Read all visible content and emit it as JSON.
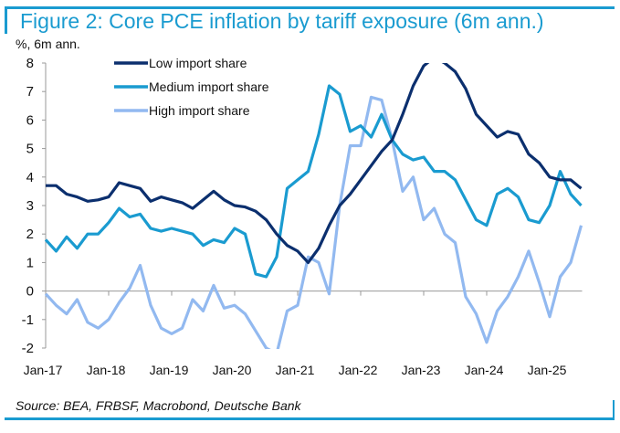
{
  "title": "Figure 2: Core PCE inflation by tariff exposure (6m ann.)",
  "source": "Source: BEA, FRBSF, Macrobond, Deutsche Bank",
  "chart_data": {
    "type": "line",
    "title": "Figure 2: Core PCE inflation by tariff exposure (6m ann.)",
    "ylabel": "%, 6m ann.",
    "xlabel": "",
    "ylim": [
      -2,
      8
    ],
    "yticks": [
      "8",
      "7",
      "6",
      "5",
      "4",
      "3",
      "2",
      "1",
      "0",
      "-1",
      "-2"
    ],
    "ytick_values": [
      8,
      7,
      6,
      5,
      4,
      3,
      2,
      1,
      0,
      -1,
      -2
    ],
    "xticks": [
      "Jan-17",
      "Jan-18",
      "Jan-19",
      "Jan-20",
      "Jan-21",
      "Jan-22",
      "Jan-23",
      "Jan-24",
      "Jan-25"
    ],
    "x_start": "Jan-17",
    "x_step_months": 2,
    "legend_position": "top-center",
    "series": [
      {
        "name": "Low import share",
        "color": "#0b2f6e",
        "values": [
          3.7,
          3.7,
          3.4,
          3.3,
          3.15,
          3.2,
          3.3,
          3.8,
          3.7,
          3.6,
          3.15,
          3.3,
          3.2,
          3.1,
          2.9,
          3.2,
          3.5,
          3.2,
          3.0,
          2.95,
          2.8,
          2.5,
          2.0,
          1.6,
          1.4,
          1.0,
          1.5,
          2.3,
          3.0,
          3.4,
          3.9,
          4.4,
          4.9,
          5.3,
          6.2,
          7.2,
          7.9,
          8.2,
          8.0,
          7.7,
          7.1,
          6.2,
          5.8,
          5.4,
          5.6,
          5.5,
          4.8,
          4.5,
          4.0,
          3.9,
          3.9,
          3.6
        ]
      },
      {
        "name": "Medium import share",
        "color": "#1a9bd0",
        "values": [
          1.8,
          1.4,
          1.9,
          1.5,
          2.0,
          2.0,
          2.4,
          2.9,
          2.6,
          2.7,
          2.2,
          2.1,
          2.2,
          2.1,
          2.0,
          1.6,
          1.8,
          1.7,
          2.2,
          2.0,
          0.6,
          0.5,
          1.2,
          3.6,
          3.9,
          4.2,
          5.5,
          7.2,
          6.9,
          5.6,
          5.8,
          5.4,
          6.2,
          5.3,
          4.8,
          4.6,
          4.7,
          4.2,
          4.2,
          3.9,
          3.2,
          2.5,
          2.3,
          3.4,
          3.6,
          3.3,
          2.5,
          2.4,
          3.0,
          4.2,
          3.4,
          3.0
        ]
      },
      {
        "name": "High import share",
        "color": "#92b9f0",
        "values": [
          -0.1,
          -0.5,
          -0.8,
          -0.3,
          -1.1,
          -1.3,
          -1.0,
          -0.4,
          0.1,
          0.9,
          -0.5,
          -1.3,
          -1.5,
          -1.3,
          -0.3,
          -0.7,
          0.2,
          -0.6,
          -0.5,
          -0.8,
          -1.4,
          -2.0,
          -2.2,
          -0.7,
          -0.5,
          1.2,
          1.0,
          -0.1,
          3.0,
          5.1,
          5.1,
          6.8,
          6.7,
          5.3,
          3.5,
          4.0,
          2.5,
          2.9,
          2.0,
          1.7,
          -0.2,
          -0.8,
          -1.8,
          -0.7,
          -0.2,
          0.5,
          1.4,
          0.3,
          -0.9,
          0.5,
          1.0,
          2.3
        ]
      }
    ]
  }
}
